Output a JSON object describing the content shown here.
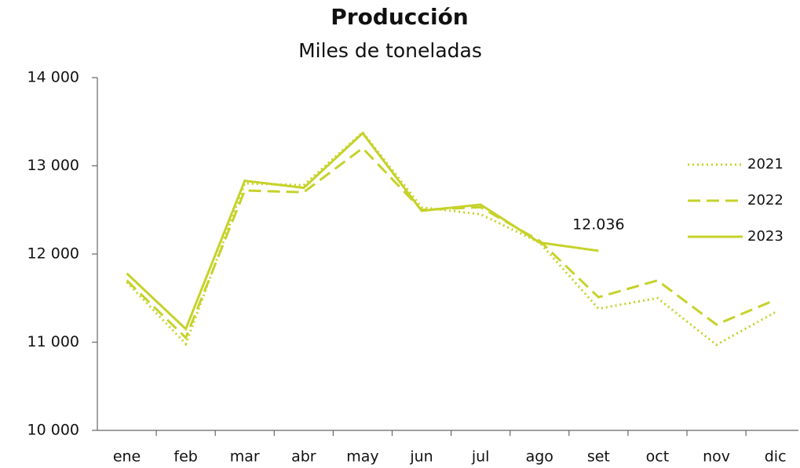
{
  "chart_data": {
    "type": "line",
    "title": "Producción",
    "subtitle": "Miles de toneladas",
    "categories": [
      "ene",
      "feb",
      "mar",
      "abr",
      "may",
      "jun",
      "jul",
      "ago",
      "set",
      "oct",
      "nov",
      "dic"
    ],
    "series": [
      {
        "name": "2021",
        "color": "#c6d22a",
        "linestyle": "dotted",
        "values": [
          11680,
          10980,
          12800,
          12780,
          13380,
          12530,
          12450,
          12130,
          11380,
          11500,
          10970,
          11340
        ]
      },
      {
        "name": "2022",
        "color": "#c6d22a",
        "linestyle": "dashed",
        "values": [
          11700,
          11050,
          12720,
          12700,
          13200,
          12500,
          12530,
          12150,
          11510,
          11700,
          11200,
          11480
        ]
      },
      {
        "name": "2023",
        "color": "#c6d22a",
        "linestyle": "solid",
        "values": [
          11780,
          11150,
          12830,
          12750,
          13370,
          12490,
          12560,
          12130,
          12036,
          null,
          null,
          null
        ],
        "value_labels": [
          null,
          null,
          null,
          null,
          null,
          null,
          null,
          null,
          "12.036",
          null,
          null,
          null
        ]
      }
    ],
    "ylim": [
      10000,
      14000
    ],
    "yticks": [
      {
        "value": 10000,
        "label": "10 000"
      },
      {
        "value": 11000,
        "label": "11 000"
      },
      {
        "value": 12000,
        "label": "12 000"
      },
      {
        "value": 13000,
        "label": "13 000"
      },
      {
        "value": 14000,
        "label": "14 000"
      }
    ],
    "legend": "right"
  }
}
